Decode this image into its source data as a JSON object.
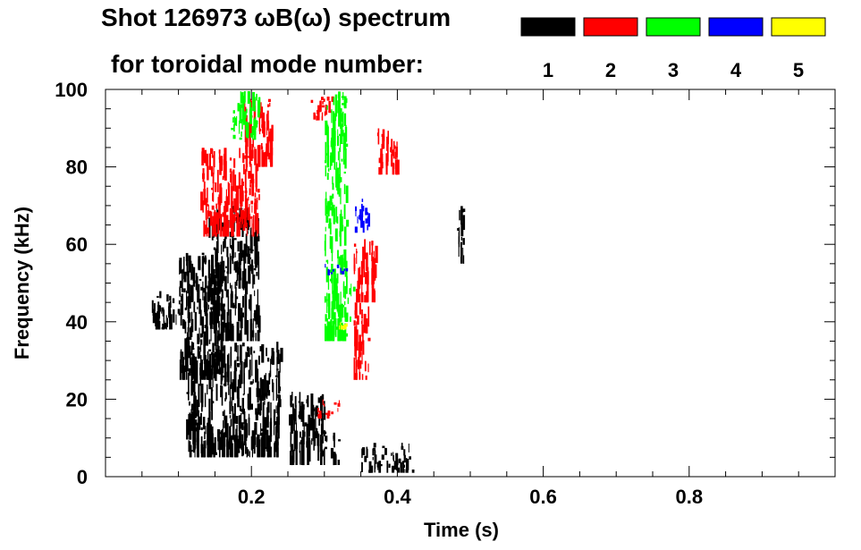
{
  "chart_data": {
    "type": "heatmap",
    "title_line1": "Shot 126973 ωB(ω) spectrum",
    "title_line2": "for toroidal mode number:",
    "xlabel": "Time (s)",
    "ylabel": "Frequency (kHz)",
    "xlim": [
      0.0,
      1.0
    ],
    "ylim": [
      0,
      100
    ],
    "xticks": [
      {
        "value": 0.2,
        "label": "0.2"
      },
      {
        "value": 0.4,
        "label": "0.4"
      },
      {
        "value": 0.6,
        "label": "0.6"
      },
      {
        "value": 0.8,
        "label": "0.8"
      }
    ],
    "yticks": [
      {
        "value": 0,
        "label": "0"
      },
      {
        "value": 20,
        "label": "20"
      },
      {
        "value": 40,
        "label": "40"
      },
      {
        "value": 60,
        "label": "60"
      },
      {
        "value": 80,
        "label": "80"
      },
      {
        "value": 100,
        "label": "100"
      }
    ],
    "legend": {
      "placement": "top-right",
      "entries": [
        {
          "label": "1",
          "color": "#000000"
        },
        {
          "label": "2",
          "color": "#ff0000"
        },
        {
          "label": "3",
          "color": "#00ff00"
        },
        {
          "label": "4",
          "color": "#0000ff"
        },
        {
          "label": "5",
          "color": "#ffff00"
        }
      ]
    },
    "regions": [
      {
        "mode": 1,
        "t0": 0.06,
        "t1": 0.1,
        "f0": 38,
        "f1": 48
      },
      {
        "mode": 1,
        "t0": 0.1,
        "t1": 0.16,
        "f0": 25,
        "f1": 58
      },
      {
        "mode": 1,
        "t0": 0.14,
        "t1": 0.21,
        "f0": 35,
        "f1": 70
      },
      {
        "mode": 1,
        "t0": 0.11,
        "t1": 0.24,
        "f0": 5,
        "f1": 35
      },
      {
        "mode": 1,
        "t0": 0.25,
        "t1": 0.3,
        "f0": 3,
        "f1": 22
      },
      {
        "mode": 1,
        "t0": 0.3,
        "t1": 0.32,
        "f0": 3,
        "f1": 12
      },
      {
        "mode": 1,
        "t0": 0.35,
        "t1": 0.42,
        "f0": 1,
        "f1": 9
      },
      {
        "mode": 1,
        "t0": 0.48,
        "t1": 0.49,
        "f0": 55,
        "f1": 70
      },
      {
        "mode": 2,
        "t0": 0.13,
        "t1": 0.21,
        "f0": 62,
        "f1": 85
      },
      {
        "mode": 2,
        "t0": 0.19,
        "t1": 0.23,
        "f0": 80,
        "f1": 98
      },
      {
        "mode": 2,
        "t0": 0.28,
        "t1": 0.31,
        "f0": 92,
        "f1": 99
      },
      {
        "mode": 2,
        "t0": 0.34,
        "t1": 0.36,
        "f0": 25,
        "f1": 45
      },
      {
        "mode": 2,
        "t0": 0.34,
        "t1": 0.37,
        "f0": 45,
        "f1": 62
      },
      {
        "mode": 2,
        "t0": 0.37,
        "t1": 0.4,
        "f0": 78,
        "f1": 90
      },
      {
        "mode": 2,
        "t0": 0.29,
        "t1": 0.32,
        "f0": 15,
        "f1": 20
      },
      {
        "mode": 3,
        "t0": 0.3,
        "t1": 0.33,
        "f0": 35,
        "f1": 100
      },
      {
        "mode": 3,
        "t0": 0.31,
        "t1": 0.34,
        "f0": 40,
        "f1": 50
      },
      {
        "mode": 3,
        "t0": 0.17,
        "t1": 0.21,
        "f0": 87,
        "f1": 100
      },
      {
        "mode": 4,
        "t0": 0.34,
        "t1": 0.36,
        "f0": 63,
        "f1": 72
      },
      {
        "mode": 4,
        "t0": 0.3,
        "t1": 0.33,
        "f0": 52,
        "f1": 55
      },
      {
        "mode": 5,
        "t0": 0.32,
        "t1": 0.33,
        "f0": 38,
        "f1": 40
      }
    ]
  }
}
